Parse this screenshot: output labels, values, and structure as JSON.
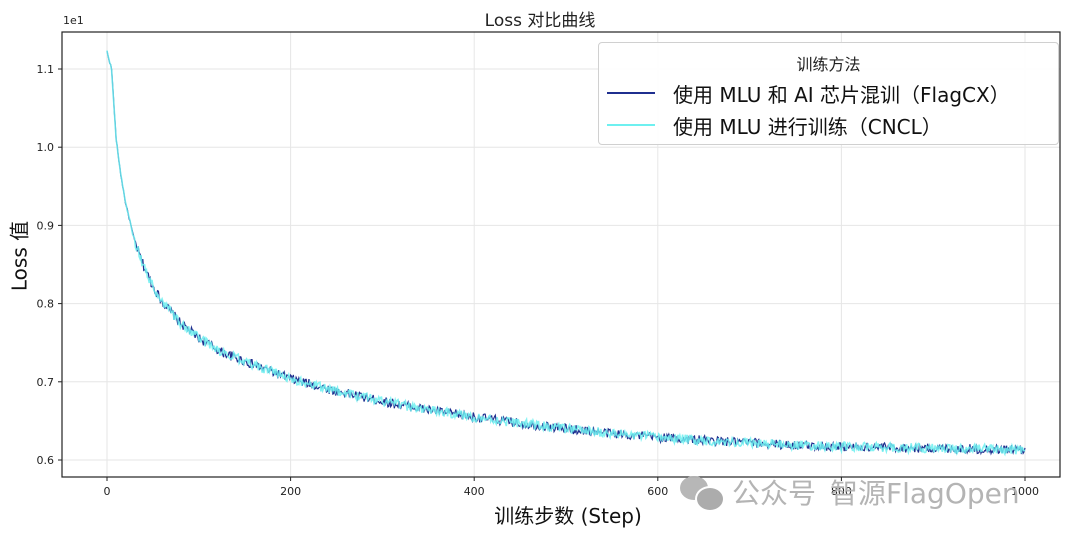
{
  "chart_data": {
    "type": "line",
    "title": "Loss 对比曲线",
    "xlabel": "训练步数 (Step)",
    "ylabel": "Loss 值",
    "y_offset_label": "1e1",
    "xlim": [
      -50,
      1050
    ],
    "ylim": [
      0.578,
      1.148
    ],
    "xticks": [
      0,
      200,
      400,
      600,
      800,
      1000
    ],
    "yticks": [
      0.6,
      0.7,
      0.8,
      0.9,
      1.0,
      1.1
    ],
    "ytick_labels": [
      "0.6",
      "0.7",
      "0.8",
      "0.9",
      "1.0",
      "1.1"
    ],
    "grid": true,
    "legend": {
      "title": "训练方法",
      "position": "upper right"
    },
    "x": [
      0,
      5,
      10,
      15,
      20,
      30,
      40,
      50,
      60,
      80,
      100,
      125,
      150,
      175,
      200,
      250,
      300,
      350,
      400,
      450,
      500,
      550,
      600,
      650,
      700,
      750,
      800,
      850,
      900,
      950,
      1000
    ],
    "series": [
      {
        "name": "使用 MLU 和 AI 芯片混训（FlagCX）",
        "color": "#1f2f8f",
        "values": [
          1.122,
          1.1,
          1.01,
          0.965,
          0.93,
          0.88,
          0.848,
          0.822,
          0.803,
          0.775,
          0.756,
          0.738,
          0.726,
          0.715,
          0.704,
          0.688,
          0.675,
          0.664,
          0.655,
          0.647,
          0.64,
          0.634,
          0.629,
          0.625,
          0.622,
          0.619,
          0.617,
          0.616,
          0.615,
          0.614,
          0.613
        ]
      },
      {
        "name": "使用 MLU 进行训练（CNCL）",
        "color": "#6ef0f0",
        "values": [
          1.122,
          1.1,
          1.01,
          0.965,
          0.93,
          0.88,
          0.848,
          0.822,
          0.803,
          0.775,
          0.756,
          0.738,
          0.726,
          0.715,
          0.704,
          0.688,
          0.675,
          0.664,
          0.655,
          0.647,
          0.64,
          0.634,
          0.629,
          0.625,
          0.622,
          0.619,
          0.617,
          0.616,
          0.615,
          0.614,
          0.613
        ]
      }
    ],
    "noise_amplitude": 0.006
  },
  "watermark": {
    "text": "公众号",
    "brand": "智源FlagOpen"
  }
}
